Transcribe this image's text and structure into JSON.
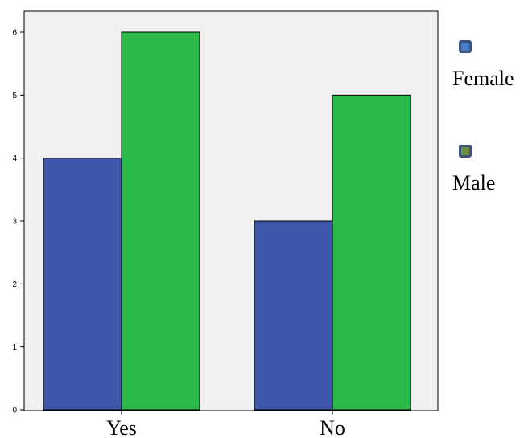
{
  "chart_data": {
    "type": "bar",
    "categories": [
      "Yes",
      "No"
    ],
    "series": [
      {
        "name": "Female",
        "values": [
          4,
          3
        ],
        "color": "#3e57ab",
        "legend_swatch_color": "#4a80c8"
      },
      {
        "name": "Male",
        "values": [
          6,
          5
        ],
        "color": "#2db84a",
        "legend_swatch_color": "#6f8f3c"
      }
    ],
    "title": "",
    "xlabel": "",
    "ylabel": "",
    "ylim": [
      0,
      6
    ],
    "yticks": [
      0,
      1,
      2,
      3,
      4,
      5,
      6
    ],
    "grid": false,
    "legend_position": "right",
    "plot_background": "#f0f0f0"
  }
}
